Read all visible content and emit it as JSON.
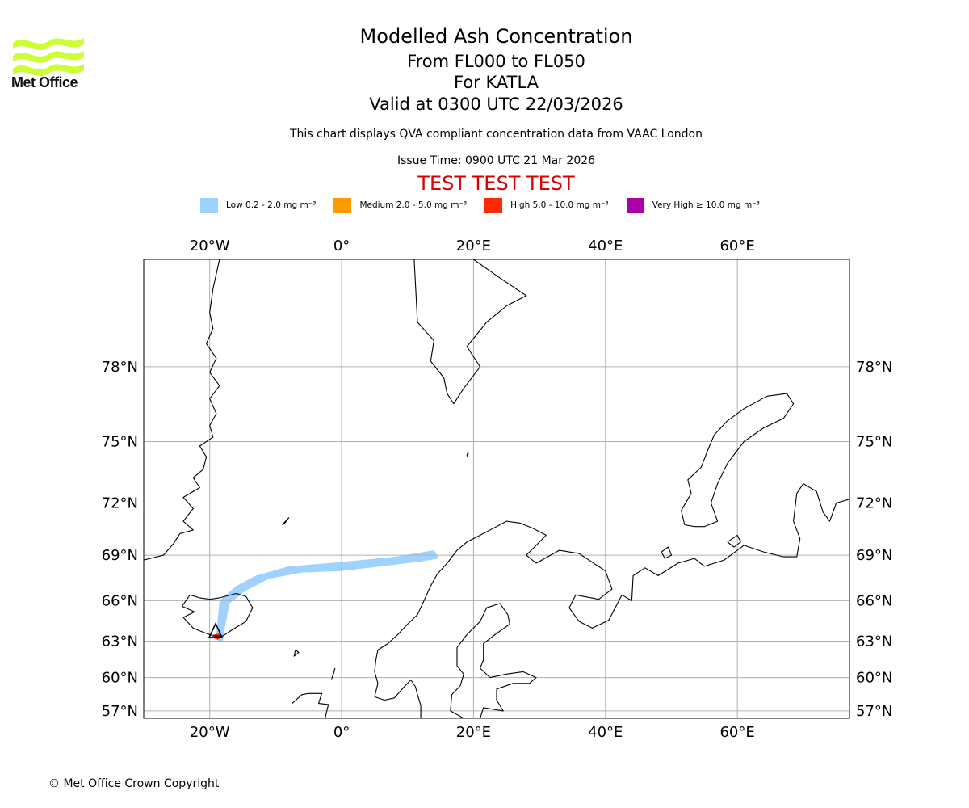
{
  "header": {
    "title": "Modelled Ash Concentration",
    "levels": "From FL000 to FL050",
    "volcano": "For KATLA",
    "valid": "Valid at 0300 UTC 22/03/2026",
    "subtitle": "This chart displays QVA compliant concentration data from VAAC London",
    "issue": "Issue Time: 0900 UTC 21 Mar 2026",
    "test_banner": "TEST TEST TEST"
  },
  "logo": {
    "text": "Met Office",
    "color": "#ccff33"
  },
  "legend": [
    {
      "label": "Low 0.2 - 2.0 mg m⁻³",
      "color": "#a0d2ff"
    },
    {
      "label": "Medium 2.0 - 5.0 mg m⁻³",
      "color": "#ff9a00"
    },
    {
      "label": "High 5.0 - 10.0 mg m⁻³",
      "color": "#ff2a00"
    },
    {
      "label": "Very High ≥ 10.0 mg m⁻³",
      "color": "#aa00aa"
    }
  ],
  "map": {
    "lon_range": [
      -30,
      77
    ],
    "lat_range": [
      56.3,
      81.3
    ],
    "lon_ticks": [
      {
        "value": -20,
        "label": "20°W"
      },
      {
        "value": 0,
        "label": "0°"
      },
      {
        "value": 20,
        "label": "20°E"
      },
      {
        "value": 40,
        "label": "40°E"
      },
      {
        "value": 60,
        "label": "60°E"
      }
    ],
    "lat_ticks": [
      {
        "value": 57,
        "label": "57°N"
      },
      {
        "value": 60,
        "label": "60°N"
      },
      {
        "value": 63,
        "label": "63°N"
      },
      {
        "value": 66,
        "label": "66°N"
      },
      {
        "value": 69,
        "label": "69°N"
      },
      {
        "value": 72,
        "label": "72°N"
      },
      {
        "value": 75,
        "label": "75°N"
      },
      {
        "value": 78,
        "label": "78°N"
      }
    ],
    "volcano_location": {
      "lon": -19.1,
      "lat": 63.6
    },
    "ash_low_plume": [
      [
        -18.7,
        63.0
      ],
      [
        -19.0,
        63.5
      ],
      [
        -18.5,
        66.0
      ],
      [
        -16.0,
        67.0
      ],
      [
        -13.0,
        67.7
      ],
      [
        -8.0,
        68.3
      ],
      [
        -2.0,
        68.5
      ],
      [
        3.0,
        68.7
      ],
      [
        8.0,
        68.9
      ],
      [
        14.0,
        69.3
      ],
      [
        14.8,
        68.8
      ],
      [
        12.0,
        68.6
      ],
      [
        6.0,
        68.3
      ],
      [
        0.0,
        68.0
      ],
      [
        -6.0,
        67.9
      ],
      [
        -11.0,
        67.5
      ],
      [
        -14.5,
        66.7
      ],
      [
        -17.0,
        65.8
      ],
      [
        -17.8,
        63.8
      ],
      [
        -18.0,
        63.0
      ]
    ],
    "ash_high_patch": [
      [
        -19.5,
        63.5
      ],
      [
        -18.5,
        63.6
      ],
      [
        -18.2,
        63.3
      ],
      [
        -18.8,
        63.1
      ],
      [
        -19.3,
        63.2
      ]
    ],
    "coastlines": [
      {
        "name": "iceland",
        "points": [
          [
            -22.5,
            64.0
          ],
          [
            -24.0,
            64.8
          ],
          [
            -22.3,
            65.2
          ],
          [
            -24.2,
            65.6
          ],
          [
            -23.0,
            66.4
          ],
          [
            -21.5,
            66.2
          ],
          [
            -20.0,
            66.1
          ],
          [
            -18.5,
            66.2
          ],
          [
            -16.0,
            66.5
          ],
          [
            -14.5,
            66.3
          ],
          [
            -13.5,
            65.5
          ],
          [
            -14.5,
            64.5
          ],
          [
            -16.5,
            63.9
          ],
          [
            -18.0,
            63.4
          ],
          [
            -19.5,
            63.4
          ],
          [
            -21.5,
            63.8
          ],
          [
            -22.5,
            64.0
          ]
        ]
      },
      {
        "name": "greenland-east",
        "points": [
          [
            -30.0,
            68.7
          ],
          [
            -27.0,
            69.0
          ],
          [
            -25.5,
            69.7
          ],
          [
            -24.5,
            70.3
          ],
          [
            -22.5,
            70.5
          ],
          [
            -24.0,
            71.0
          ],
          [
            -22.5,
            71.7
          ],
          [
            -24.0,
            72.3
          ],
          [
            -21.5,
            72.8
          ],
          [
            -22.5,
            73.3
          ],
          [
            -21.0,
            73.7
          ],
          [
            -20.5,
            74.3
          ],
          [
            -21.5,
            74.8
          ],
          [
            -19.5,
            75.2
          ],
          [
            -20.0,
            75.7
          ],
          [
            -19.0,
            76.2
          ],
          [
            -20.0,
            76.8
          ],
          [
            -18.5,
            77.3
          ],
          [
            -20.0,
            77.8
          ],
          [
            -19.0,
            78.3
          ],
          [
            -20.5,
            78.8
          ],
          [
            -19.5,
            79.3
          ],
          [
            -20.0,
            79.8
          ],
          [
            -19.5,
            80.5
          ],
          [
            -18.5,
            81.3
          ]
        ]
      },
      {
        "name": "jan-mayen",
        "points": [
          [
            -9.0,
            70.8
          ],
          [
            -8.0,
            71.2
          ],
          [
            -8.6,
            70.9
          ],
          [
            -9.0,
            70.8
          ]
        ]
      },
      {
        "name": "svalbard",
        "points": [
          [
            11.0,
            81.3
          ],
          [
            11.5,
            79.5
          ],
          [
            14.0,
            78.9
          ],
          [
            13.5,
            78.2
          ],
          [
            15.5,
            77.6
          ],
          [
            16.0,
            77.0
          ],
          [
            17.0,
            76.6
          ],
          [
            18.5,
            77.2
          ],
          [
            21.0,
            78.0
          ],
          [
            19.0,
            78.7
          ],
          [
            22.0,
            79.5
          ],
          [
            25.0,
            80.0
          ],
          [
            28.0,
            80.3
          ],
          [
            24.0,
            80.8
          ],
          [
            20.0,
            81.3
          ]
        ]
      },
      {
        "name": "scandinavia-norway",
        "points": [
          [
            5.0,
            58.3
          ],
          [
            5.5,
            59.5
          ],
          [
            5.0,
            60.5
          ],
          [
            5.2,
            61.5
          ],
          [
            5.5,
            62.3
          ],
          [
            7.0,
            62.8
          ],
          [
            8.5,
            63.5
          ],
          [
            10.0,
            64.3
          ],
          [
            11.5,
            65.0
          ],
          [
            12.5,
            66.0
          ],
          [
            13.5,
            67.0
          ],
          [
            14.5,
            67.8
          ],
          [
            16.0,
            68.5
          ],
          [
            17.5,
            69.3
          ],
          [
            19.0,
            69.8
          ],
          [
            21.0,
            70.2
          ],
          [
            23.0,
            70.6
          ],
          [
            25.0,
            71.0
          ],
          [
            27.0,
            70.9
          ],
          [
            29.0,
            70.6
          ],
          [
            31.0,
            70.2
          ],
          [
            30.0,
            69.8
          ],
          [
            28.0,
            69.0
          ],
          [
            29.5,
            68.5
          ],
          [
            33.0,
            69.3
          ],
          [
            36.0,
            69.1
          ],
          [
            40.0,
            68.0
          ],
          [
            41.0,
            66.8
          ],
          [
            39.0,
            66.1
          ],
          [
            35.5,
            66.4
          ],
          [
            34.5,
            65.5
          ],
          [
            36.0,
            64.5
          ],
          [
            38.0,
            64.0
          ],
          [
            40.5,
            64.6
          ],
          [
            42.5,
            66.4
          ],
          [
            44.0,
            66.0
          ],
          [
            44.2,
            67.7
          ],
          [
            46.0,
            68.2
          ],
          [
            48.0,
            67.7
          ],
          [
            51.0,
            68.5
          ],
          [
            53.5,
            68.8
          ],
          [
            55.0,
            68.3
          ],
          [
            58.0,
            68.7
          ],
          [
            61.0,
            69.6
          ],
          [
            64.0,
            69.2
          ],
          [
            67.0,
            68.9
          ],
          [
            69.0,
            68.9
          ],
          [
            69.5,
            70.0
          ],
          [
            68.5,
            71.0
          ],
          [
            69.0,
            72.5
          ],
          [
            70.0,
            73.0
          ],
          [
            72.0,
            72.6
          ],
          [
            73.0,
            71.5
          ],
          [
            74.0,
            71.0
          ],
          [
            75.0,
            72.0
          ],
          [
            77.0,
            72.2
          ]
        ]
      },
      {
        "name": "sweden-finland",
        "points": [
          [
            12.0,
            56.3
          ],
          [
            12.0,
            57.5
          ],
          [
            11.5,
            58.5
          ],
          [
            11.2,
            59.2
          ],
          [
            10.5,
            59.8
          ],
          [
            9.5,
            59.2
          ],
          [
            8.0,
            58.2
          ],
          [
            6.5,
            58.0
          ],
          [
            5.0,
            58.3
          ]
        ]
      },
      {
        "name": "gulf-of-bothnia",
        "points": [
          [
            18.5,
            56.3
          ],
          [
            16.5,
            57.0
          ],
          [
            16.7,
            58.5
          ],
          [
            18.0,
            59.3
          ],
          [
            18.5,
            60.3
          ],
          [
            17.5,
            61.0
          ],
          [
            17.5,
            62.5
          ],
          [
            19.0,
            63.5
          ],
          [
            21.0,
            64.5
          ],
          [
            22.0,
            65.5
          ],
          [
            24.0,
            65.8
          ],
          [
            25.2,
            65.0
          ],
          [
            25.5,
            64.3
          ],
          [
            23.5,
            63.6
          ],
          [
            21.5,
            62.8
          ],
          [
            21.5,
            61.5
          ],
          [
            21.0,
            60.8
          ],
          [
            22.5,
            60.0
          ],
          [
            25.0,
            60.3
          ],
          [
            27.5,
            60.5
          ],
          [
            29.5,
            60.0
          ],
          [
            28.5,
            59.5
          ],
          [
            26.0,
            59.5
          ],
          [
            23.5,
            59.0
          ],
          [
            23.5,
            58.0
          ],
          [
            24.5,
            57.0
          ],
          [
            21.5,
            57.3
          ],
          [
            21.0,
            56.3
          ]
        ]
      },
      {
        "name": "novaya-zemlya",
        "points": [
          [
            52.0,
            70.8
          ],
          [
            51.5,
            71.6
          ],
          [
            53.0,
            72.5
          ],
          [
            52.5,
            73.2
          ],
          [
            54.5,
            73.8
          ],
          [
            55.5,
            74.6
          ],
          [
            56.5,
            75.3
          ],
          [
            58.5,
            75.9
          ],
          [
            61.0,
            76.4
          ],
          [
            64.5,
            76.9
          ],
          [
            67.5,
            77.0
          ],
          [
            68.5,
            76.6
          ],
          [
            67.0,
            76.0
          ],
          [
            64.0,
            75.6
          ],
          [
            61.0,
            75.0
          ],
          [
            58.5,
            74.0
          ],
          [
            57.0,
            73.0
          ],
          [
            56.0,
            72.0
          ],
          [
            57.0,
            71.0
          ],
          [
            55.0,
            70.7
          ],
          [
            53.5,
            70.7
          ],
          [
            52.0,
            70.8
          ]
        ]
      },
      {
        "name": "kolguev",
        "points": [
          [
            48.5,
            69.2
          ],
          [
            49.5,
            69.5
          ],
          [
            50.0,
            69.0
          ],
          [
            49.0,
            68.8
          ],
          [
            48.5,
            69.2
          ]
        ]
      },
      {
        "name": "vaygach",
        "points": [
          [
            58.5,
            69.8
          ],
          [
            60.0,
            70.2
          ],
          [
            60.5,
            69.8
          ],
          [
            59.5,
            69.5
          ],
          [
            58.5,
            69.8
          ]
        ]
      },
      {
        "name": "shetland-faroe",
        "points": [
          [
            -7.0,
            62.3
          ],
          [
            -6.5,
            62.1
          ],
          [
            -7.2,
            61.8
          ],
          [
            -7.0,
            62.3
          ]
        ]
      },
      {
        "name": "shetland",
        "points": [
          [
            -1.0,
            60.8
          ],
          [
            -1.3,
            60.2
          ],
          [
            -1.5,
            59.9
          ],
          [
            -1.0,
            60.8
          ]
        ]
      },
      {
        "name": "scotland-north",
        "points": [
          [
            -7.5,
            57.7
          ],
          [
            -6.0,
            58.5
          ],
          [
            -5.0,
            58.6
          ],
          [
            -3.0,
            58.6
          ],
          [
            -3.5,
            57.7
          ],
          [
            -2.0,
            57.6
          ],
          [
            -2.5,
            56.3
          ]
        ]
      },
      {
        "name": "bear-island",
        "points": [
          [
            19.0,
            74.4
          ],
          [
            19.2,
            74.5
          ],
          [
            19.1,
            74.3
          ],
          [
            19.0,
            74.4
          ]
        ]
      }
    ]
  },
  "footer": {
    "copyright": "© Met Office Crown Copyright"
  }
}
